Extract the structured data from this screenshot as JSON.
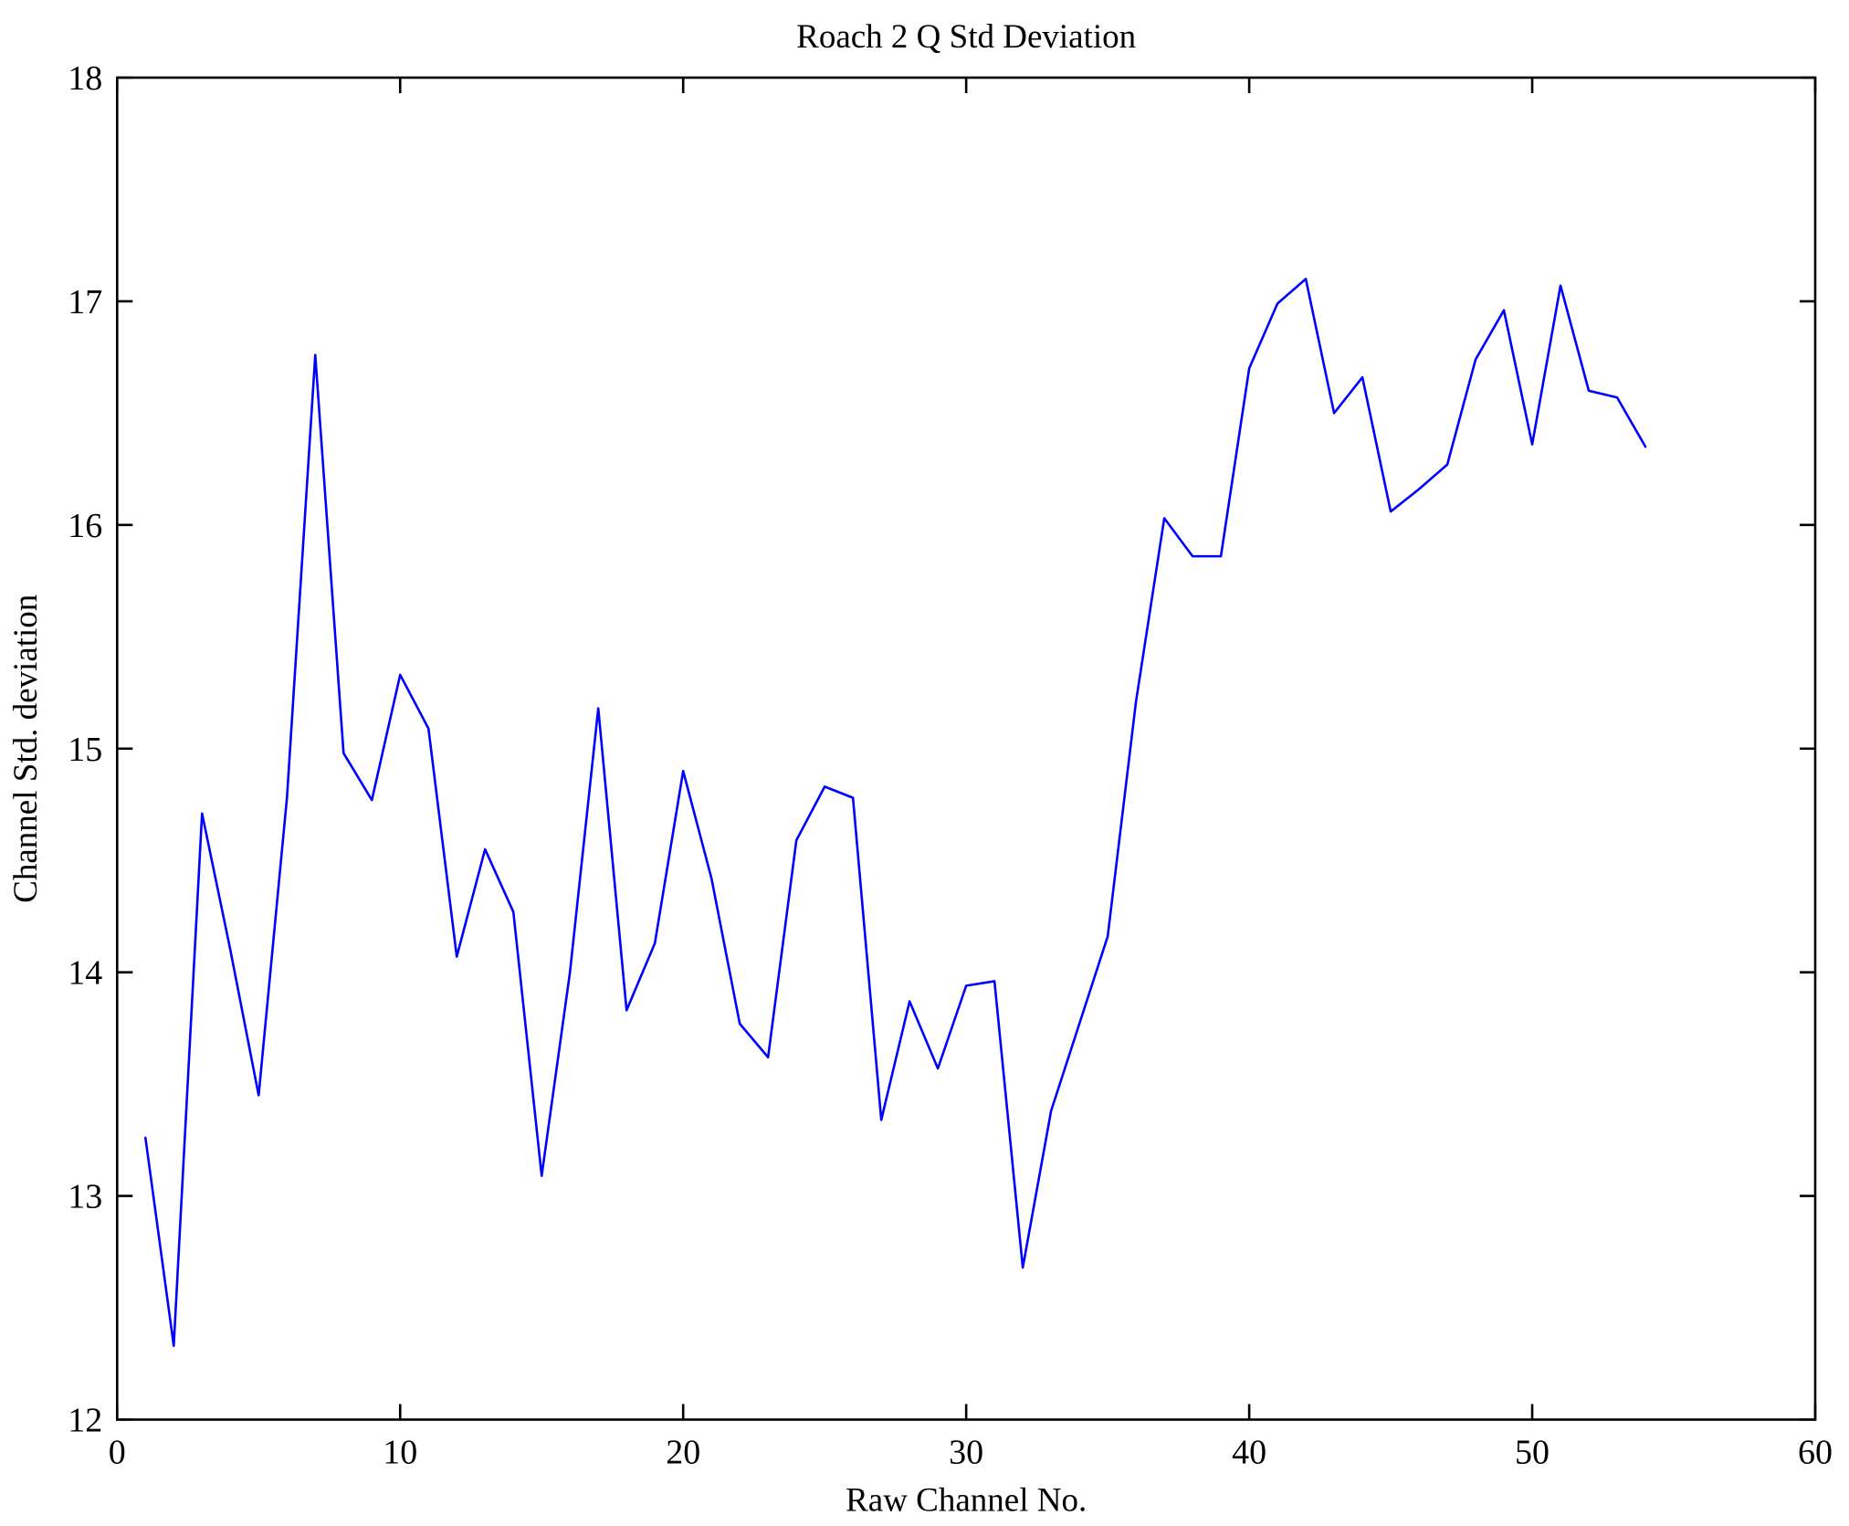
{
  "chart_data": {
    "type": "line",
    "title": "Roach 2 Q Std Deviation",
    "xlabel": "Raw Channel No.",
    "ylabel": "Channel Std. deviation",
    "xlim": [
      0,
      60
    ],
    "ylim": [
      12,
      18
    ],
    "xticks": [
      0,
      10,
      20,
      30,
      40,
      50,
      60
    ],
    "yticks": [
      12,
      13,
      14,
      15,
      16,
      17,
      18
    ],
    "grid": false,
    "legend": null,
    "line_color": "#0000ff",
    "axis_color": "#000000",
    "background_color": "#ffffff",
    "x": [
      1,
      2,
      3,
      4,
      5,
      6,
      7,
      8,
      9,
      10,
      11,
      12,
      13,
      14,
      15,
      16,
      17,
      18,
      19,
      20,
      21,
      22,
      23,
      24,
      25,
      26,
      27,
      28,
      29,
      30,
      31,
      32,
      33,
      34,
      35,
      36,
      37,
      38,
      39,
      40,
      41,
      42,
      43,
      44,
      45,
      46,
      47,
      48,
      49,
      50,
      51,
      52,
      53,
      54
    ],
    "series": [
      {
        "name": "Channel Std. deviation",
        "values": [
          13.26,
          12.33,
          14.71,
          14.1,
          13.45,
          14.78,
          16.76,
          14.98,
          14.77,
          15.33,
          15.09,
          14.07,
          14.55,
          14.27,
          13.09,
          14.0,
          15.18,
          13.83,
          14.13,
          14.9,
          14.42,
          13.77,
          13.62,
          14.59,
          14.83,
          14.78,
          13.34,
          13.87,
          13.57,
          13.94,
          13.96,
          12.68,
          13.38,
          13.77,
          14.16,
          15.21,
          16.03,
          15.86,
          15.86,
          16.7,
          16.99,
          17.1,
          16.5,
          16.66,
          16.06,
          16.16,
          16.27,
          16.74,
          16.96,
          16.36,
          17.07,
          16.6,
          16.57,
          16.35
        ]
      }
    ]
  }
}
